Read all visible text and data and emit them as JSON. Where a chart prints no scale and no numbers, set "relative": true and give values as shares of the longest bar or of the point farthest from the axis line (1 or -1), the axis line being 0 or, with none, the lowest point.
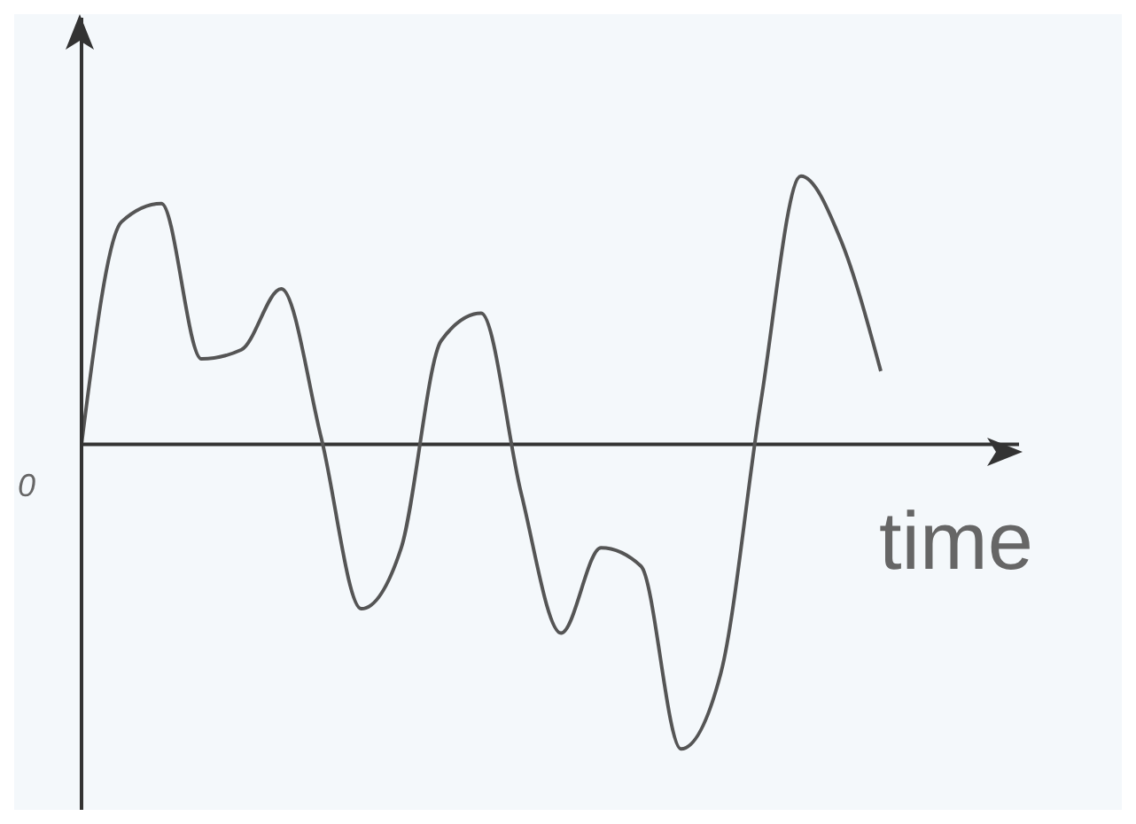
{
  "chart_data": {
    "type": "line",
    "xlabel": "time",
    "relative": true,
    "annotations": [
      "0"
    ],
    "categories": [
      null,
      null,
      null,
      null,
      null,
      null,
      null,
      null,
      null,
      null,
      null,
      null,
      null,
      null,
      null,
      null,
      null,
      null,
      null,
      null,
      null
    ],
    "series": [
      {
        "color": "#555555",
        "values": [
          0,
          0.73,
          0.79,
          0.28,
          0.31,
          0.51,
          0.02,
          -0.54,
          -0.34,
          0.34,
          0.43,
          -0.16,
          -0.62,
          -0.34,
          -0.4,
          -1,
          -0.75,
          0.14,
          0.88,
          0.67,
          0.24
        ]
      }
    ],
    "grid": false,
    "legend": false,
    "marker": "none",
    "line_style": "solid"
  }
}
